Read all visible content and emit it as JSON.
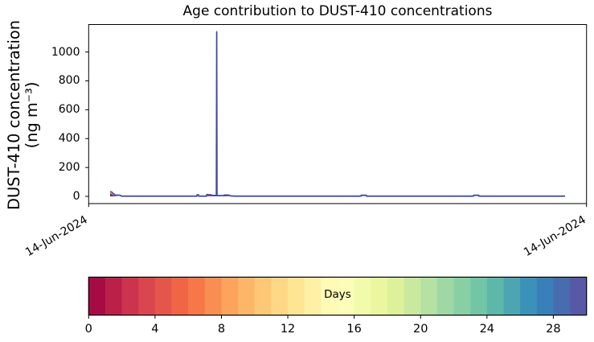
{
  "title": "Age contribution to DUST-410 concentrations",
  "y_axis": {
    "label_line1": "DUST-410 concentration",
    "label_line2": "(ng m⁻³)"
  },
  "chart_data": {
    "type": "area",
    "title": "Age contribution to DUST-410 concentrations",
    "ylabel": "DUST-410 concentration (ng m⁻³)",
    "xlabel": "",
    "ylim": [
      -50,
      1190
    ],
    "yticks": [
      0,
      200,
      400,
      600,
      800,
      1000
    ],
    "xtick_labels": [
      "14-Jun-2024",
      "14-Jun-2024"
    ],
    "xtick_fracs": [
      0,
      1
    ],
    "xtick_rotation_deg": 30,
    "grid": false,
    "peak_value": 1140,
    "peak_x_frac": 0.2572,
    "total_line_color": "#3b4aa2",
    "total_line": [
      [
        0.0431,
        31
      ],
      [
        0.046,
        31
      ],
      [
        0.0488,
        20
      ],
      [
        0.0512,
        16
      ],
      [
        0.0528,
        9
      ],
      [
        0.0633,
        8
      ],
      [
        0.0657,
        1.5
      ],
      [
        0.2174,
        1.5
      ],
      [
        0.2177,
        11
      ],
      [
        0.2208,
        11
      ],
      [
        0.2211,
        1.5
      ],
      [
        0.2367,
        1.5
      ],
      [
        0.2373,
        13
      ],
      [
        0.2406,
        13
      ],
      [
        0.2412,
        10.5
      ],
      [
        0.2467,
        10.5
      ],
      [
        0.2473,
        6.5
      ],
      [
        0.2565,
        6.5
      ],
      [
        0.2572,
        1140
      ],
      [
        0.2578,
        6.5
      ],
      [
        0.2594,
        5
      ],
      [
        0.2717,
        5
      ],
      [
        0.2724,
        9
      ],
      [
        0.2753,
        9
      ],
      [
        0.2761,
        7.5
      ],
      [
        0.2772,
        9.5
      ],
      [
        0.2793,
        9.5
      ],
      [
        0.2804,
        8
      ],
      [
        0.283,
        8
      ],
      [
        0.284,
        3.5
      ],
      [
        0.2942,
        1.5
      ],
      [
        0.5467,
        1.5
      ],
      [
        0.5475,
        8
      ],
      [
        0.5575,
        8
      ],
      [
        0.5583,
        1.5
      ],
      [
        0.7727,
        1.5
      ],
      [
        0.7735,
        8
      ],
      [
        0.7835,
        8
      ],
      [
        0.7843,
        1.5
      ],
      [
        0.9569,
        1.5
      ]
    ],
    "stacked_fills": [
      {
        "name": "old-age-fill-start",
        "color": "#74c7a5",
        "points": [
          [
            0.0431,
            26
          ],
          [
            0.0463,
            21
          ],
          [
            0.0496,
            11
          ],
          [
            0.0528,
            6
          ],
          [
            0.0568,
            2
          ],
          [
            0.0593,
            0
          ]
        ]
      },
      {
        "name": "young-age-fill-start",
        "color": "#a70b44",
        "points": [
          [
            0.0431,
            18
          ],
          [
            0.0463,
            14
          ],
          [
            0.0492,
            8
          ],
          [
            0.0515,
            4.5
          ],
          [
            0.0552,
            1
          ],
          [
            0.0576,
            0
          ]
        ]
      },
      {
        "name": "old-age-fill-step",
        "color": "#74c7a5",
        "points": [
          [
            0.2367,
            13.5
          ],
          [
            0.2406,
            13.5
          ],
          [
            0.2415,
            10
          ]
        ]
      },
      {
        "name": "young-age-fill-mid",
        "color": "#a70b44",
        "points": [
          [
            0.2367,
            4.5
          ],
          [
            0.2467,
            4.5
          ],
          [
            0.2481,
            2
          ],
          [
            0.2717,
            2
          ],
          [
            0.2724,
            3.5
          ],
          [
            0.283,
            3.5
          ],
          [
            0.2843,
            0
          ]
        ]
      },
      {
        "name": "old-age-fill-after",
        "color": "#74c7a5",
        "points": [
          [
            0.2804,
            4.5
          ],
          [
            0.2942,
            3.5
          ],
          [
            0.2958,
            0
          ]
        ]
      },
      {
        "name": "mid-age-fill-bump1",
        "color": "#c8e99e",
        "points": [
          [
            0.5467,
            0.5
          ],
          [
            0.5475,
            8.5
          ],
          [
            0.5575,
            8.5
          ],
          [
            0.5583,
            0.5
          ]
        ]
      },
      {
        "name": "mid-age-fill-bump2",
        "color": "#eaf79e",
        "points": [
          [
            0.7727,
            0.5
          ],
          [
            0.7735,
            8.5
          ],
          [
            0.7835,
            8.5
          ],
          [
            0.7843,
            0.5
          ]
        ]
      }
    ],
    "colorbar": {
      "label": "Days",
      "colormap": "Spectral",
      "vmin": 0,
      "vmax": 30,
      "n_segments": 30,
      "ticks": [
        0,
        4,
        8,
        12,
        16,
        20,
        24,
        28
      ],
      "colors": [
        "#a70b44",
        "#ba2048",
        "#cc344d",
        "#da464d",
        "#e45649",
        "#ef6545",
        "#f67848",
        "#f88e52",
        "#fca35c",
        "#fdb668",
        "#fec776",
        "#fed884",
        "#fee594",
        "#fef0a5",
        "#fffab6",
        "#fbfdb8",
        "#f2faac",
        "#eaf79e",
        "#dcf19a",
        "#c8e99e",
        "#b5e1a2",
        "#9fd8a4",
        "#88d0a4",
        "#72c6a5",
        "#5db8a9",
        "#4ca5b1",
        "#3b92b9",
        "#397fb9",
        "#486cb0",
        "#5759a7"
      ]
    }
  }
}
